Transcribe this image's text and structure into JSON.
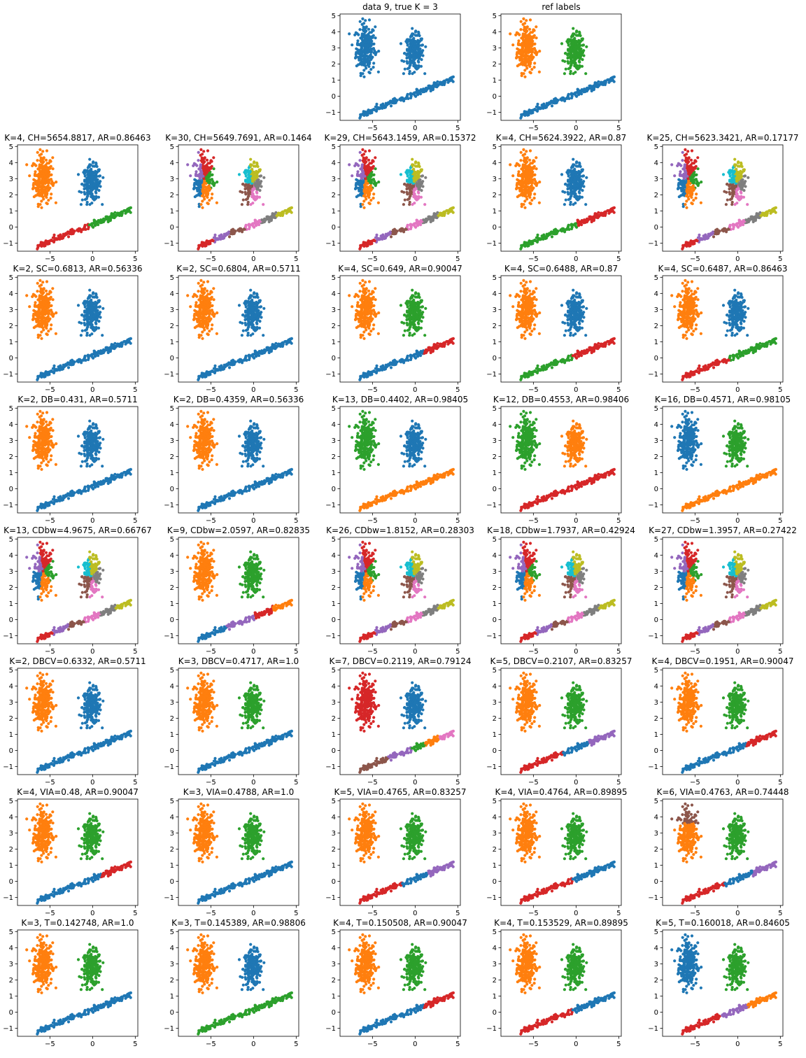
{
  "chart_data": {
    "type": "scatter",
    "colors": {
      "tab:blue": "#1f77b4",
      "tab:orange": "#ff7f0e",
      "tab:green": "#2ca02c",
      "tab:red": "#d62728",
      "tab:purple": "#9467bd",
      "tab:brown": "#8c564b",
      "tab:pink": "#e377c2",
      "tab:gray": "#7f7f7f",
      "tab:olive": "#bcbd22",
      "tab:cyan": "#17becf"
    },
    "axes": {
      "xlim": [
        -8.8,
        5.3
      ],
      "ylim": [
        -1.5,
        5.1
      ],
      "xticks": [
        -5,
        0,
        5
      ],
      "yticks": [
        -1,
        0,
        1,
        2,
        3,
        4,
        5
      ],
      "grid": false
    },
    "data_shape": {
      "blob_left": {
        "center": [
          -5.8,
          3.0
        ],
        "spread": [
          0.55,
          0.75
        ]
      },
      "blob_mid": {
        "center": [
          -0.1,
          2.7
        ],
        "spread": [
          0.55,
          0.55
        ]
      },
      "line": {
        "x_range": [
          -6.5,
          4.5
        ],
        "y_range": [
          -1.2,
          1.1
        ]
      }
    },
    "panels": [
      {
        "row": 0,
        "col": 2,
        "title": "data 9, true K = 3",
        "scheme": "all-blue"
      },
      {
        "row": 0,
        "col": 3,
        "title": "ref labels",
        "scheme": "ref"
      },
      {
        "row": 1,
        "col": 0,
        "title": "K=4, CH=5654.8817, AR=0.86463",
        "scheme": "line-split-2-red-green"
      },
      {
        "row": 1,
        "col": 1,
        "title": "K=30, CH=5649.7691, AR=0.1464",
        "scheme": "fragmented"
      },
      {
        "row": 1,
        "col": 2,
        "title": "K=29, CH=5643.1459, AR=0.15372",
        "scheme": "fragmented"
      },
      {
        "row": 1,
        "col": 3,
        "title": "K=4, CH=5624.3922, AR=0.87",
        "scheme": "line-split-2-green-red"
      },
      {
        "row": 1,
        "col": 4,
        "title": "K=25, CH=5623.3421, AR=0.17177",
        "scheme": "fragmented"
      },
      {
        "row": 2,
        "col": 0,
        "title": "K=2, SC=0.6813, AR=0.56336",
        "scheme": "k2-mid-blue"
      },
      {
        "row": 2,
        "col": 1,
        "title": "K=2, SC=0.6804, AR=0.5711",
        "scheme": "k2-mid-blue"
      },
      {
        "row": 2,
        "col": 2,
        "title": "K=4, SC=0.649, AR=0.90047",
        "scheme": "line-split-2-blue-red"
      },
      {
        "row": 2,
        "col": 3,
        "title": "K=4, SC=0.6488, AR=0.87",
        "scheme": "k4-mid-blue-green-red"
      },
      {
        "row": 2,
        "col": 4,
        "title": "K=4, SC=0.6487, AR=0.86463",
        "scheme": "k4-mid-blue-red-green"
      },
      {
        "row": 3,
        "col": 0,
        "title": "K=2, DB=0.431, AR=0.5711",
        "scheme": "k2-mid-blue"
      },
      {
        "row": 3,
        "col": 1,
        "title": "K=2, DB=0.4359, AR=0.56336",
        "scheme": "k2-mid-blue"
      },
      {
        "row": 3,
        "col": 2,
        "title": "K=13, DB=0.4402, AR=0.98405",
        "scheme": "green-blue-orange"
      },
      {
        "row": 3,
        "col": 3,
        "title": "K=12, DB=0.4553, AR=0.98406",
        "scheme": "green-orange-red"
      },
      {
        "row": 3,
        "col": 4,
        "title": "K=16, DB=0.4571, AR=0.98105",
        "scheme": "blue-green-orange"
      },
      {
        "row": 4,
        "col": 0,
        "title": "K=13, CDbw=4.9675, AR=0.66767",
        "scheme": "fragmented"
      },
      {
        "row": 4,
        "col": 1,
        "title": "K=9, CDbw=2.0597, AR=0.82835",
        "scheme": "line-multi"
      },
      {
        "row": 4,
        "col": 2,
        "title": "K=26, CDbw=1.8152, AR=0.28303",
        "scheme": "fragmented"
      },
      {
        "row": 4,
        "col": 3,
        "title": "K=18, CDbw=1.7937, AR=0.42924",
        "scheme": "fragmented"
      },
      {
        "row": 4,
        "col": 4,
        "title": "K=27, CDbw=1.3957, AR=0.27422",
        "scheme": "fragmented"
      },
      {
        "row": 5,
        "col": 0,
        "title": "K=2, DBCV=0.6332, AR=0.5711",
        "scheme": "k2-mid-blue"
      },
      {
        "row": 5,
        "col": 1,
        "title": "K=3, DBCV=0.4717, AR=1.0",
        "scheme": "ref"
      },
      {
        "row": 5,
        "col": 2,
        "title": "K=7, DBCV=0.2119, AR=0.79124",
        "scheme": "red-blue-multi"
      },
      {
        "row": 5,
        "col": 3,
        "title": "K=5, DBCV=0.2107, AR=0.83257",
        "scheme": "line-split-3-red-blue-purple"
      },
      {
        "row": 5,
        "col": 4,
        "title": "K=4, DBCV=0.1951, AR=0.90047",
        "scheme": "line-split-2-blue-red"
      },
      {
        "row": 6,
        "col": 0,
        "title": "K=4, VIA=0.48, AR=0.90047",
        "scheme": "line-split-2-blue-red"
      },
      {
        "row": 6,
        "col": 1,
        "title": "K=3, VIA=0.4788, AR=1.0",
        "scheme": "ref"
      },
      {
        "row": 6,
        "col": 2,
        "title": "K=5, VIA=0.4765, AR=0.83257",
        "scheme": "line-split-3-red-blue-purple"
      },
      {
        "row": 6,
        "col": 3,
        "title": "K=4, VIA=0.4764, AR=0.89895",
        "scheme": "line-split-2-red-blue"
      },
      {
        "row": 6,
        "col": 4,
        "title": "K=6, VIA=0.4763, AR=0.74448",
        "scheme": "k6-brown-top"
      },
      {
        "row": 7,
        "col": 0,
        "title": "K=3, T=0.142748, AR=1.0",
        "scheme": "ref"
      },
      {
        "row": 7,
        "col": 1,
        "title": "K=3, T=0.145389, AR=0.98806",
        "scheme": "mid-blue-line-green"
      },
      {
        "row": 7,
        "col": 2,
        "title": "K=4, T=0.150508, AR=0.90047",
        "scheme": "line-split-2-blue-red"
      },
      {
        "row": 7,
        "col": 3,
        "title": "K=4, T=0.153529, AR=0.89895",
        "scheme": "line-split-2-red-blue"
      },
      {
        "row": 7,
        "col": 4,
        "title": "K=5, T=0.160018, AR=0.84605",
        "scheme": "k5-left-blue"
      }
    ]
  }
}
